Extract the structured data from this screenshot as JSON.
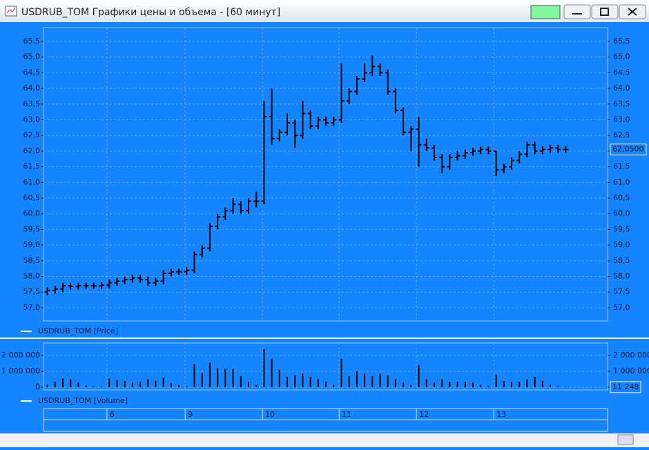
{
  "window": {
    "title": "USDRUB_TOM Графики цены и объема - [60 минут]"
  },
  "chart_data": [
    {
      "type": "ohlc",
      "legend": "USDRUB_TOM [Price]",
      "color": "#000000",
      "grid": true,
      "x": [
        0,
        1,
        2,
        3,
        4,
        5,
        6,
        7,
        8,
        9,
        10,
        11,
        12,
        13,
        14,
        15,
        16,
        17,
        18,
        19,
        20,
        21,
        22,
        23,
        24,
        25,
        26,
        27,
        28,
        29,
        30,
        31,
        32,
        33,
        34,
        35,
        36,
        37,
        38,
        39,
        40,
        41,
        42,
        43,
        44,
        45,
        46,
        47,
        48,
        49,
        50,
        51,
        52,
        53,
        54,
        55,
        56,
        57,
        58,
        59,
        60,
        61,
        62,
        63,
        64,
        65,
        66,
        67
      ],
      "open": [
        57.5,
        57.55,
        57.6,
        57.7,
        57.68,
        57.7,
        57.7,
        57.7,
        57.72,
        57.8,
        57.85,
        57.9,
        57.95,
        57.9,
        57.8,
        57.85,
        58.1,
        58.15,
        58.15,
        58.2,
        58.7,
        58.9,
        59.6,
        59.9,
        60.1,
        60.3,
        60.1,
        60.4,
        60.4,
        63.1,
        62.4,
        62.6,
        62.9,
        62.5,
        63.2,
        62.8,
        63.0,
        62.9,
        63.0,
        63.6,
        63.9,
        64.3,
        64.5,
        64.7,
        64.5,
        63.9,
        63.3,
        62.6,
        62.7,
        62.2,
        62.1,
        61.8,
        61.5,
        61.8,
        61.85,
        61.95,
        62.0,
        62.05,
        62.0,
        61.4,
        61.5,
        61.7,
        61.9,
        62.2,
        62.0,
        62.05,
        62.1,
        62.05
      ],
      "high": [
        57.65,
        57.7,
        57.8,
        57.8,
        57.8,
        57.8,
        57.8,
        57.82,
        57.9,
        57.95,
        58.0,
        58.05,
        58.05,
        58.0,
        57.95,
        58.2,
        58.25,
        58.25,
        58.3,
        58.8,
        59.0,
        59.7,
        60.0,
        60.2,
        60.5,
        60.4,
        60.5,
        60.7,
        63.6,
        64.0,
        62.7,
        63.2,
        63.0,
        63.6,
        63.3,
        63.1,
        63.1,
        63.1,
        64.8,
        64.0,
        64.4,
        64.8,
        65.05,
        64.8,
        64.6,
        64.0,
        63.4,
        62.8,
        63.1,
        62.4,
        62.2,
        61.9,
        61.9,
        62.0,
        62.05,
        62.1,
        62.15,
        62.15,
        62.0,
        61.6,
        61.8,
        62.0,
        62.3,
        62.3,
        62.15,
        62.2,
        62.2,
        62.15
      ],
      "low": [
        57.4,
        57.45,
        57.5,
        57.58,
        57.58,
        57.6,
        57.6,
        57.6,
        57.62,
        57.7,
        57.75,
        57.8,
        57.8,
        57.7,
        57.7,
        57.75,
        58.0,
        58.05,
        58.05,
        58.1,
        58.6,
        58.8,
        59.5,
        59.8,
        60.0,
        60.0,
        60.0,
        60.2,
        60.3,
        62.2,
        62.3,
        62.5,
        62.1,
        62.4,
        62.7,
        62.7,
        62.8,
        62.8,
        62.9,
        63.5,
        63.8,
        64.2,
        64.4,
        64.4,
        63.8,
        63.2,
        62.5,
        62.0,
        61.5,
        62.0,
        61.7,
        61.3,
        61.4,
        61.7,
        61.75,
        61.85,
        61.9,
        61.9,
        61.2,
        61.3,
        61.4,
        61.6,
        61.8,
        61.9,
        61.9,
        61.95,
        61.95,
        61.95
      ],
      "close": [
        57.55,
        57.6,
        57.7,
        57.68,
        57.7,
        57.7,
        57.7,
        57.72,
        57.8,
        57.85,
        57.9,
        57.95,
        57.9,
        57.8,
        57.85,
        58.1,
        58.15,
        58.15,
        58.2,
        58.7,
        58.9,
        59.6,
        59.9,
        60.1,
        60.3,
        60.1,
        60.4,
        60.4,
        63.1,
        62.4,
        62.6,
        62.9,
        62.5,
        63.2,
        62.8,
        63.0,
        62.9,
        63.0,
        63.6,
        63.9,
        64.3,
        64.5,
        64.7,
        64.5,
        63.9,
        63.3,
        62.6,
        62.7,
        62.2,
        62.1,
        61.8,
        61.5,
        61.8,
        61.85,
        61.95,
        62.0,
        62.05,
        62.0,
        61.4,
        61.5,
        61.7,
        61.9,
        62.2,
        62.0,
        62.05,
        62.1,
        62.05,
        62.05
      ],
      "last_label": "62,0500",
      "xlim": [
        -0.5,
        72.4
      ],
      "ylim": [
        56.58,
        65.94
      ],
      "yticks": [
        {
          "value": 57.0,
          "label": "57,0"
        },
        {
          "value": 57.5,
          "label": "57,5"
        },
        {
          "value": 58.0,
          "label": "58,0"
        },
        {
          "value": 58.5,
          "label": "58,5"
        },
        {
          "value": 59.0,
          "label": "59,0"
        },
        {
          "value": 59.5,
          "label": "59,5"
        },
        {
          "value": 60.0,
          "label": "60,0"
        },
        {
          "value": 60.5,
          "label": "60,5"
        },
        {
          "value": 61.0,
          "label": "61,0"
        },
        {
          "value": 61.5,
          "label": "61,5"
        },
        {
          "value": 62.0,
          "label": "62,0"
        },
        {
          "value": 62.5,
          "label": "62,5"
        },
        {
          "value": 63.0,
          "label": "63,0"
        },
        {
          "value": 63.5,
          "label": "63,5"
        },
        {
          "value": 64.0,
          "label": "64,0"
        },
        {
          "value": 64.5,
          "label": "64,5"
        },
        {
          "value": 65.0,
          "label": "65,0"
        },
        {
          "value": 65.5,
          "label": "65,5"
        }
      ]
    },
    {
      "type": "bar",
      "legend": "USDRUB_TOM [Volume]",
      "color": "#000000",
      "grid": true,
      "x": [
        0,
        1,
        2,
        3,
        4,
        5,
        6,
        7,
        8,
        9,
        10,
        11,
        12,
        13,
        14,
        15,
        16,
        17,
        18,
        19,
        20,
        21,
        22,
        23,
        24,
        25,
        26,
        27,
        28,
        29,
        30,
        31,
        32,
        33,
        34,
        35,
        36,
        37,
        38,
        39,
        40,
        41,
        42,
        43,
        44,
        45,
        46,
        47,
        48,
        49,
        50,
        51,
        52,
        53,
        54,
        55,
        56,
        57,
        58,
        59,
        60,
        61,
        62,
        63,
        64,
        65,
        66,
        67
      ],
      "values": [
        150000,
        350000,
        550000,
        500000,
        300000,
        100000,
        50000,
        30000,
        550000,
        450000,
        400000,
        300000,
        350000,
        500000,
        400000,
        600000,
        250000,
        150000,
        50000,
        1450000,
        900000,
        1550000,
        1200000,
        1150000,
        1150000,
        700000,
        350000,
        150000,
        2400000,
        1800000,
        1100000,
        650000,
        750000,
        850000,
        650000,
        500000,
        350000,
        150000,
        1800000,
        700000,
        1000000,
        850000,
        700000,
        850000,
        750000,
        500000,
        300000,
        150000,
        1400000,
        500000,
        300000,
        500000,
        350000,
        350000,
        350000,
        300000,
        150000,
        80000,
        800000,
        400000,
        350000,
        350000,
        500000,
        650000,
        400000,
        150000,
        50000,
        11248
      ],
      "last_label": "11 248",
      "xlim": [
        -0.5,
        72.4
      ],
      "ylim": [
        -170000,
        2780000
      ],
      "yticks": [
        0,
        {
          "value": 1000000,
          "label": "1 000 000"
        },
        {
          "value": 2000000,
          "label": "2 000 000"
        }
      ],
      "xticks": [
        {
          "value": 7.7,
          "label": "6"
        },
        {
          "value": 17.8,
          "label": "9"
        },
        {
          "value": 27.8,
          "label": "10"
        },
        {
          "value": 37.7,
          "label": "11"
        },
        {
          "value": 47.7,
          "label": "12"
        },
        {
          "value": 57.7,
          "label": "13"
        }
      ]
    }
  ]
}
